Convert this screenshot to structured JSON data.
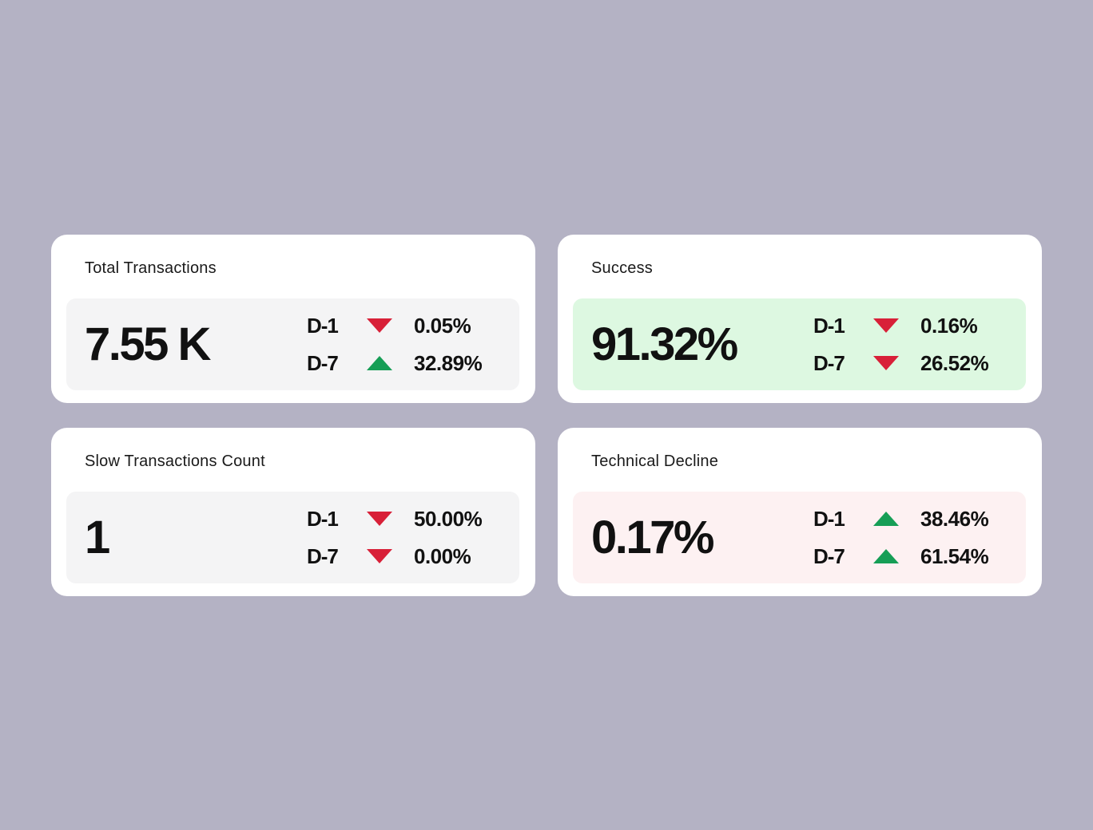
{
  "colors": {
    "background": "#b4b2c4",
    "card": "#ffffff",
    "panelNeutral": "#f4f4f5",
    "panelPositive": "#ddf8e1",
    "panelNegative": "#fdf1f2",
    "up": "#169e56",
    "down": "#d82038",
    "text": "#111111",
    "title": "#1a1a1a"
  },
  "cards": [
    {
      "id": "total-transactions",
      "title": "Total Transactions",
      "value": "7.55 K",
      "tone": "neutral",
      "rows": [
        {
          "label": "D-1",
          "direction": "down",
          "value": "0.05%"
        },
        {
          "label": "D-7",
          "direction": "up",
          "value": "32.89%"
        }
      ]
    },
    {
      "id": "success",
      "title": "Success",
      "value": "91.32%",
      "tone": "positive",
      "rows": [
        {
          "label": "D-1",
          "direction": "down",
          "value": "0.16%"
        },
        {
          "label": "D-7",
          "direction": "down",
          "value": "26.52%"
        }
      ]
    },
    {
      "id": "slow-transactions-count",
      "title": "Slow Transactions Count",
      "value": "1",
      "tone": "neutral",
      "rows": [
        {
          "label": "D-1",
          "direction": "down",
          "value": "50.00%"
        },
        {
          "label": "D-7",
          "direction": "down",
          "value": "0.00%"
        }
      ]
    },
    {
      "id": "technical-decline",
      "title": "Technical Decline",
      "value": "0.17%",
      "tone": "negative",
      "rows": [
        {
          "label": "D-1",
          "direction": "up",
          "value": "38.46%"
        },
        {
          "label": "D-7",
          "direction": "up",
          "value": "61.54%"
        }
      ]
    }
  ]
}
